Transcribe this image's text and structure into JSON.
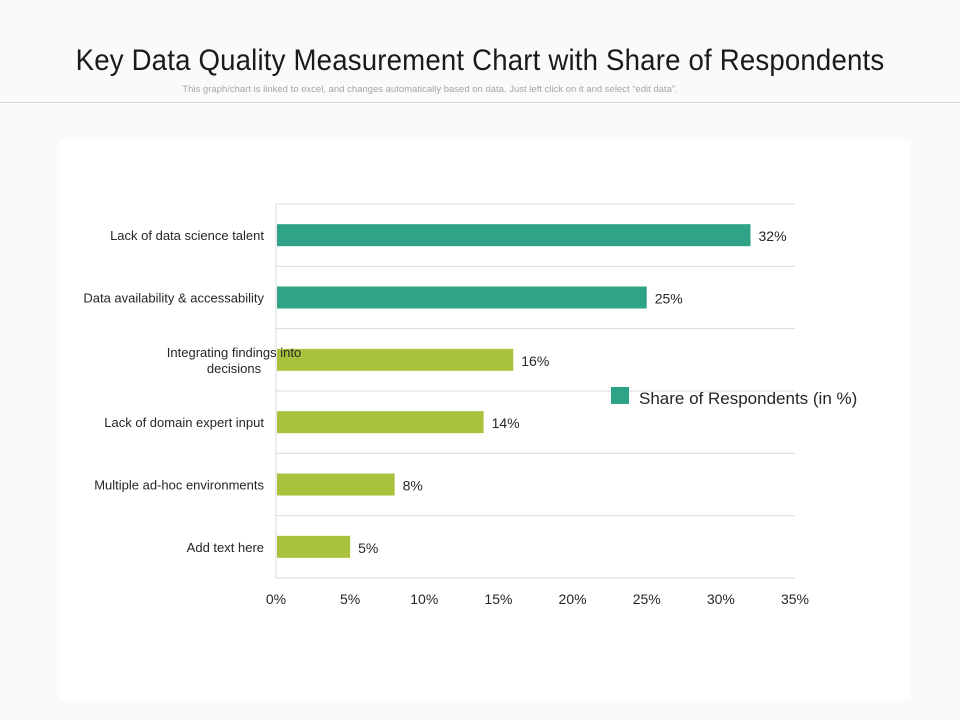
{
  "header": {
    "title": "Key Data Quality Measurement Chart with Share of Respondents",
    "subtitle": "This graph/chart is linked to excel, and changes automatically based on data. Just left click on it and select “edit data”."
  },
  "colors": {
    "teal": "#2ea385",
    "olive": "#a8c23c",
    "gridline": "#d9d9d9",
    "text": "#262626"
  },
  "chart_data": {
    "type": "bar",
    "orientation": "horizontal",
    "categories": [
      [
        "Lack of data science talent"
      ],
      [
        "Data availability & accessability"
      ],
      [
        "Integrating findings into",
        "decisions"
      ],
      [
        "Lack of domain expert input"
      ],
      [
        "Multiple ad-hoc environments"
      ],
      [
        "Add text here"
      ]
    ],
    "series": [
      {
        "name": "Share of Respondents (in %)",
        "values": [
          32,
          25,
          16,
          14,
          8,
          5
        ]
      }
    ],
    "value_labels": [
      "32%",
      "25%",
      "16%",
      "14%",
      "8%",
      "5%"
    ],
    "bar_colors": [
      "teal",
      "teal",
      "olive",
      "olive",
      "olive",
      "olive"
    ],
    "xlim": [
      0,
      35
    ],
    "x_ticks": [
      0,
      5,
      10,
      15,
      20,
      25,
      30,
      35
    ],
    "x_tick_labels": [
      "0%",
      "5%",
      "10%",
      "15%",
      "20%",
      "25%",
      "30%",
      "35%"
    ],
    "grid": true,
    "legend": {
      "position": "right",
      "label": "Share of Respondents (in %)"
    }
  }
}
